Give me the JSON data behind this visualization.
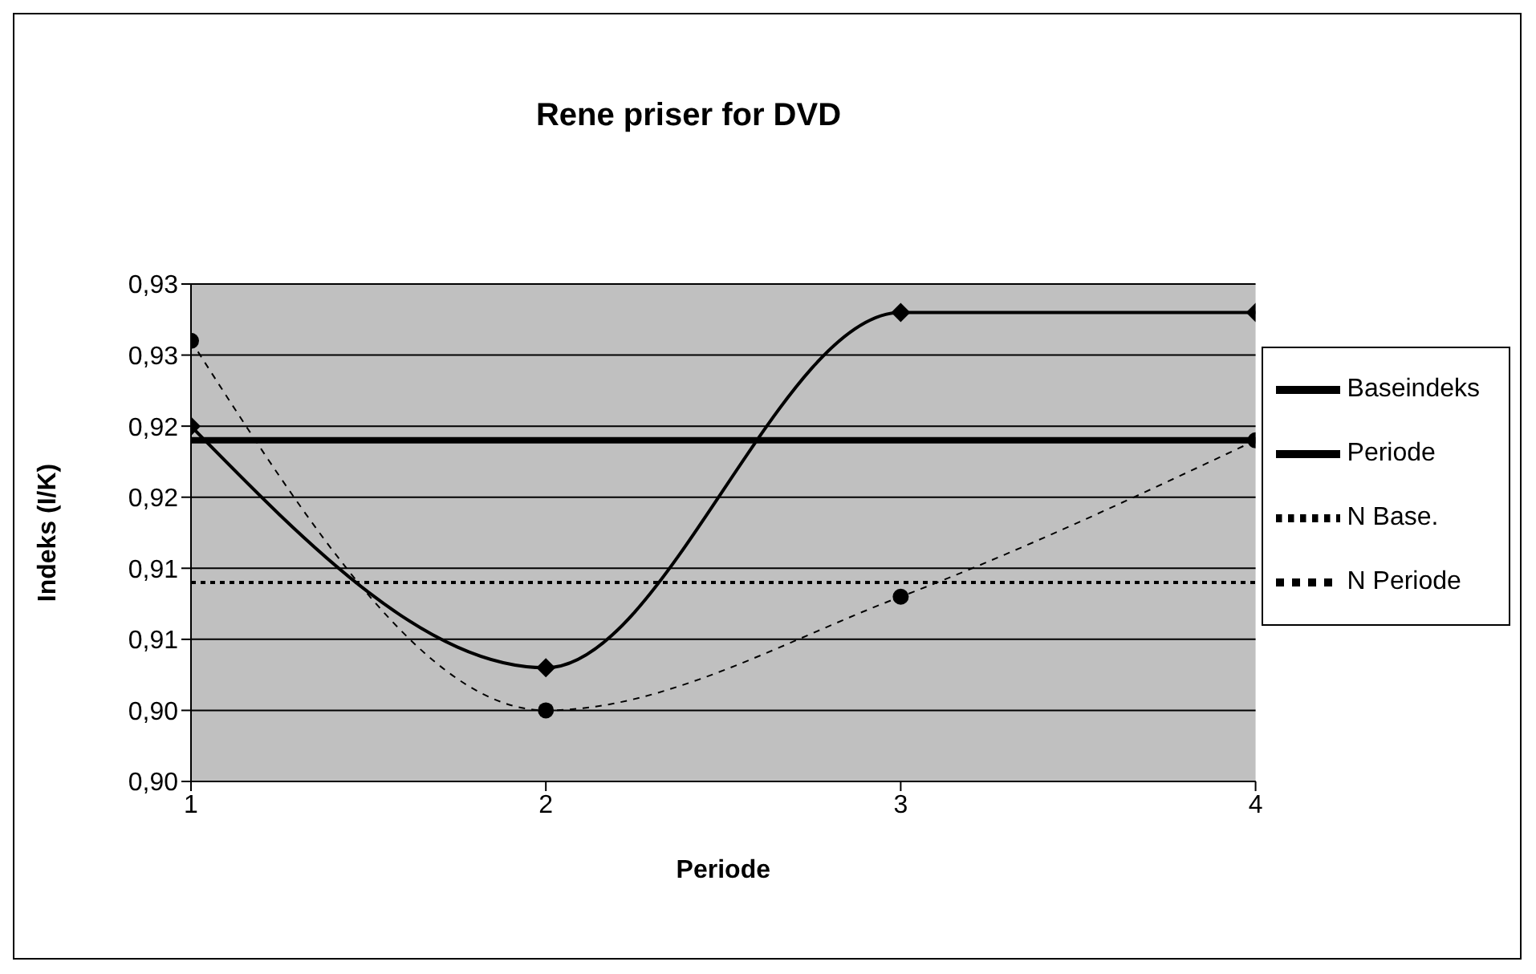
{
  "chart_data": {
    "type": "line",
    "title": "Rene priser for DVD",
    "xlabel": "Periode",
    "ylabel": "Indeks (I/K)",
    "x": [
      1,
      2,
      3,
      4
    ],
    "series": [
      {
        "name": "Baseindeks",
        "color": "#000000",
        "values": [
          0.924,
          0.924,
          0.924,
          0.924
        ],
        "marker": "none",
        "line_style": "solid"
      },
      {
        "name": "Periode",
        "color": "#000000",
        "values": [
          0.925,
          0.908,
          0.933,
          0.933
        ],
        "marker": "diamond",
        "line_style": "solid"
      },
      {
        "name": "N Base.",
        "color": "#000000",
        "values": [
          0.914,
          0.914,
          0.914,
          0.914
        ],
        "marker": "none",
        "line_style": "dotted"
      },
      {
        "name": "N Periode",
        "color": "#000000",
        "values": [
          0.931,
          0.905,
          0.913,
          0.924
        ],
        "marker": "circle",
        "line_style": "dashed"
      }
    ],
    "xlim": [
      1,
      4
    ],
    "xticks": [
      1,
      2,
      3,
      4
    ],
    "ylim": [
      0.9,
      0.935
    ],
    "yticks": [
      {
        "value": 0.9,
        "label": "0,90"
      },
      {
        "value": 0.905,
        "label": "0,90"
      },
      {
        "value": 0.91,
        "label": "0,91"
      },
      {
        "value": 0.915,
        "label": "0,91"
      },
      {
        "value": 0.92,
        "label": "0,92"
      },
      {
        "value": 0.925,
        "label": "0,92"
      },
      {
        "value": 0.93,
        "label": "0,93"
      },
      {
        "value": 0.935,
        "label": "0,93"
      }
    ],
    "grid": "y",
    "legend": "right"
  }
}
